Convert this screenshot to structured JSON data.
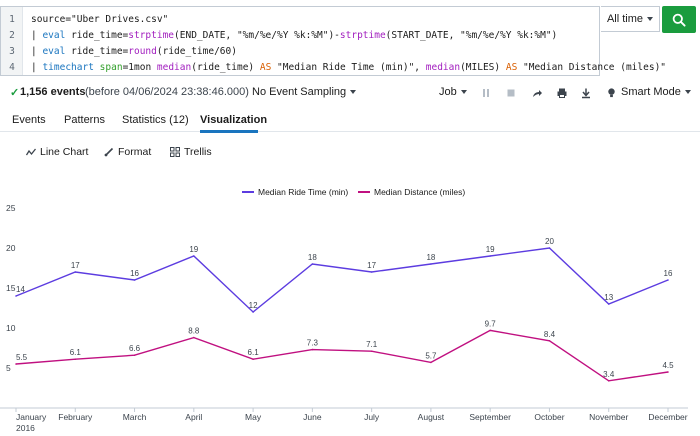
{
  "search": {
    "line_numbers": [
      "1",
      "2",
      "3",
      "4"
    ],
    "lines": [
      [
        {
          "t": "source=\"Uber Drives.csv\"",
          "c": "str"
        }
      ],
      [
        {
          "t": "| ",
          "c": "str"
        },
        {
          "t": "eval",
          "c": "kw"
        },
        {
          "t": " ride_time=",
          "c": "str"
        },
        {
          "t": "strptime",
          "c": "fn"
        },
        {
          "t": "(END_DATE, \"%m/%e/%Y %k:%M\")-",
          "c": "str"
        },
        {
          "t": "strptime",
          "c": "fn"
        },
        {
          "t": "(START_DATE, \"%m/%e/%Y %k:%M\")",
          "c": "str"
        }
      ],
      [
        {
          "t": "| ",
          "c": "str"
        },
        {
          "t": "eval",
          "c": "kw"
        },
        {
          "t": " ride_time=",
          "c": "str"
        },
        {
          "t": "round",
          "c": "fn"
        },
        {
          "t": "(ride_time/60)",
          "c": "str"
        }
      ],
      [
        {
          "t": "| ",
          "c": "str"
        },
        {
          "t": "timechart",
          "c": "kw"
        },
        {
          "t": " ",
          "c": "str"
        },
        {
          "t": "span",
          "c": "ag"
        },
        {
          "t": "=1mon ",
          "c": "str"
        },
        {
          "t": "median",
          "c": "fn"
        },
        {
          "t": "(ride_time) ",
          "c": "str"
        },
        {
          "t": "AS",
          "c": "as"
        },
        {
          "t": " \"Median Ride Time (min)\", ",
          "c": "str"
        },
        {
          "t": "median",
          "c": "fn"
        },
        {
          "t": "(MILES) ",
          "c": "str"
        },
        {
          "t": "AS",
          "c": "as"
        },
        {
          "t": " \"Median Distance (miles)\"",
          "c": "str"
        }
      ]
    ],
    "time_range": "All time",
    "search_button_icon": "search-icon"
  },
  "status": {
    "events_count": "1,156 events",
    "events_detail": "(before 04/06/2024 23:38:46.000)",
    "sampling": "No Event Sampling",
    "job": "Job",
    "mode": "Smart Mode"
  },
  "tabs": [
    {
      "label": "Events",
      "active": false
    },
    {
      "label": "Patterns",
      "active": false
    },
    {
      "label": "Statistics (12)",
      "active": false
    },
    {
      "label": "Visualization",
      "active": true
    }
  ],
  "viz_toolbar": {
    "line_chart": "Line Chart",
    "format": "Format",
    "trellis": "Trellis"
  },
  "colors": {
    "ride_time": "#5c3ce0",
    "distance": "#c01080",
    "accent": "#1a9c3e",
    "tab_active": "#1a75bf"
  },
  "chart_data": {
    "type": "line",
    "categories": [
      "January",
      "February",
      "March",
      "April",
      "May",
      "June",
      "July",
      "August",
      "September",
      "October",
      "November",
      "December"
    ],
    "year_label": "2016",
    "series": [
      {
        "name": "Median Ride Time (min)",
        "values": [
          14,
          17,
          16,
          19,
          12,
          18,
          17,
          18,
          19,
          20,
          13,
          16
        ],
        "labels": [
          "14",
          "17",
          "16",
          "19",
          "12",
          "18",
          "17",
          "18",
          "19",
          "20",
          "13",
          "16"
        ]
      },
      {
        "name": "Median Distance (miles)",
        "values": [
          5.5,
          6.1,
          6.6,
          8.8,
          6.1,
          7.3,
          7.1,
          5.7,
          9.7,
          8.4,
          3.4,
          4.5
        ],
        "labels": [
          "5.5",
          "6.1",
          "6.6",
          "8.8",
          "6.1",
          "7.3",
          "7.1",
          "5.7",
          "9.7",
          "8.4",
          "3.4",
          "4.5"
        ]
      }
    ],
    "yticks": [
      "5",
      "10",
      "15",
      "20",
      "25"
    ],
    "ylim": [
      0,
      25
    ],
    "grid": false,
    "legend_position": "top"
  }
}
